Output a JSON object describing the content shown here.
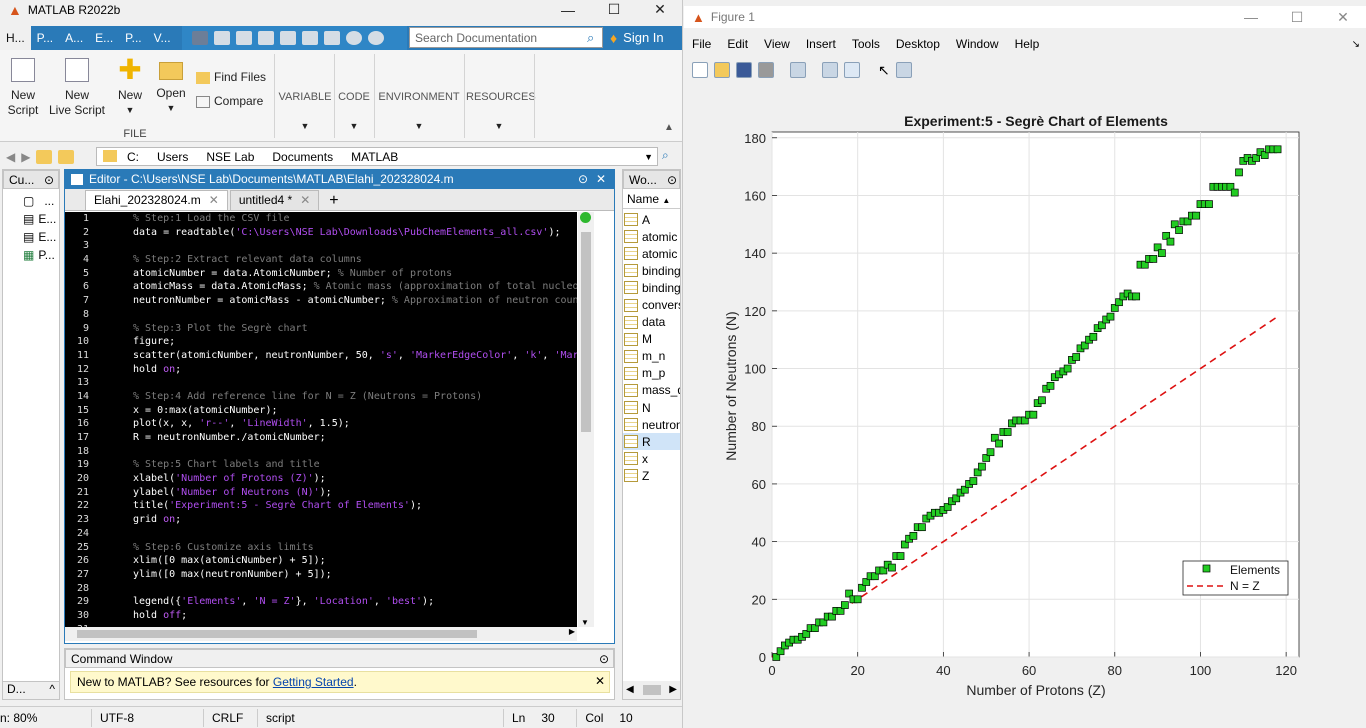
{
  "matlab": {
    "title": "MATLAB R2022b",
    "tabs": [
      "H...",
      "P...",
      "A...",
      "E...",
      "P...",
      "V..."
    ],
    "search_placeholder": "Search Documentation",
    "sign_in": "Sign In",
    "ribbon": {
      "new_script": "New\nScript",
      "new_live_script": "New\nLive Script",
      "new": "New",
      "open": "Open",
      "find_files": "Find Files",
      "compare": "Compare",
      "file_section": "FILE",
      "variable": "VARIABLE",
      "code": "CODE",
      "environment": "ENVIRONMENT",
      "resources": "RESOURCES"
    },
    "path": [
      "C:",
      "Users",
      "NSE Lab",
      "Documents",
      "MATLAB"
    ],
    "current_folder": {
      "title": "Cu...",
      "items": [
        "...",
        "E...",
        "E...",
        "P..."
      ],
      "footer": "D..."
    },
    "editor": {
      "title": "Editor - C:\\Users\\NSE Lab\\Documents\\MATLAB\\Elahi_202328024.m",
      "tabs": [
        "Elahi_202328024.m",
        "untitled4 *"
      ],
      "lines": [
        [
          [
            "c-comment",
            "% Step:1 Load the CSV file"
          ]
        ],
        [
          [
            "",
            "data = readtable("
          ],
          [
            "c-str",
            "'C:\\Users\\NSE Lab\\Downloads\\PubChemElements_all.csv'"
          ],
          [
            "",
            ");"
          ]
        ],
        [],
        [
          [
            "c-comment",
            "% Step:2 Extract relevant data columns"
          ]
        ],
        [
          [
            "",
            "atomicNumber = data.AtomicNumber; "
          ],
          [
            "c-comment",
            "% Number of protons"
          ]
        ],
        [
          [
            "",
            "atomicMass = data.AtomicMass; "
          ],
          [
            "c-comment",
            "% Atomic mass (approximation of total nucleons)"
          ]
        ],
        [
          [
            "",
            "neutronNumber = atomicMass - atomicNumber; "
          ],
          [
            "c-comment",
            "% Approximation of neutron count"
          ]
        ],
        [],
        [
          [
            "c-comment",
            "% Step:3 Plot the Segrè chart"
          ]
        ],
        [
          [
            "",
            "figure;"
          ]
        ],
        [
          [
            "",
            "scatter(atomicNumber, neutronNumber, 50, "
          ],
          [
            "c-str",
            "'s'"
          ],
          [
            "",
            ", "
          ],
          [
            "c-str",
            "'MarkerEdgeColor'"
          ],
          [
            "",
            ", "
          ],
          [
            "c-str",
            "'k'"
          ],
          [
            "",
            ", "
          ],
          [
            "c-str",
            "'Marke"
          ]
        ],
        [
          [
            "",
            "hold "
          ],
          [
            "c-kw",
            "on"
          ],
          [
            "",
            ";"
          ]
        ],
        [],
        [
          [
            "c-comment",
            "% Step:4 Add reference line for N = Z (Neutrons = Protons)"
          ]
        ],
        [
          [
            "",
            "x = 0:max(atomicNumber);"
          ]
        ],
        [
          [
            "",
            "plot(x, x, "
          ],
          [
            "c-str",
            "'r--'"
          ],
          [
            "",
            ", "
          ],
          [
            "c-str",
            "'LineWidth'"
          ],
          [
            "",
            ", 1.5);"
          ]
        ],
        [
          [
            "",
            "R = neutronNumber./atomicNumber;"
          ]
        ],
        [],
        [
          [
            "c-comment",
            "% Step:5 Chart labels and title"
          ]
        ],
        [
          [
            "",
            "xlabel("
          ],
          [
            "c-str",
            "'Number of Protons (Z)'"
          ],
          [
            "",
            ");"
          ]
        ],
        [
          [
            "",
            "ylabel("
          ],
          [
            "c-str",
            "'Number of Neutrons (N)'"
          ],
          [
            "",
            ");"
          ]
        ],
        [
          [
            "",
            "title("
          ],
          [
            "c-str",
            "'Experiment:5 - Segrè Chart of Elements'"
          ],
          [
            "",
            ");"
          ]
        ],
        [
          [
            "",
            "grid "
          ],
          [
            "c-kw",
            "on"
          ],
          [
            "",
            ";"
          ]
        ],
        [],
        [
          [
            "c-comment",
            "% Step:6 Customize axis limits"
          ]
        ],
        [
          [
            "",
            "xlim([0 max(atomicNumber) + 5]);"
          ]
        ],
        [
          [
            "",
            "ylim([0 max(neutronNumber) + 5]);"
          ]
        ],
        [],
        [
          [
            "",
            "legend({"
          ],
          [
            "c-str",
            "'Elements'"
          ],
          [
            "",
            ", "
          ],
          [
            "c-str",
            "'N = Z'"
          ],
          [
            "",
            "}, "
          ],
          [
            "c-str",
            "'Location'"
          ],
          [
            "",
            ", "
          ],
          [
            "c-str",
            "'best'"
          ],
          [
            "",
            ");"
          ]
        ],
        [
          [
            "",
            "hold "
          ],
          [
            "c-kw",
            "off"
          ],
          [
            "",
            ";"
          ]
        ],
        []
      ]
    },
    "command_window": {
      "title": "Command Window",
      "note_prefix": "New to MATLAB? See resources for ",
      "note_link": "Getting Started",
      "note_suffix": "."
    },
    "workspace": {
      "title": "Wo...",
      "column": "Name",
      "vars": [
        "A",
        "atomic",
        "atomic",
        "binding",
        "binding",
        "convers",
        "data",
        "M",
        "m_n",
        "m_p",
        "mass_d",
        "N",
        "neutron",
        "R",
        "x",
        "Z"
      ]
    },
    "status": {
      "zoom": "n: 80%",
      "encoding": "UTF-8",
      "eol": "CRLF",
      "type": "script",
      "ln_label": "Ln",
      "ln": "30",
      "col_label": "Col",
      "col": "10"
    }
  },
  "figure": {
    "title": "Figure 1",
    "menu": [
      "File",
      "Edit",
      "View",
      "Insert",
      "Tools",
      "Desktop",
      "Window",
      "Help"
    ]
  },
  "chart_data": {
    "type": "scatter",
    "title": "Experiment:5 - Segrè Chart of Elements",
    "xlabel": "Number of Protons (Z)",
    "ylabel": "Number of Neutrons (N)",
    "xlim": [
      0,
      123
    ],
    "ylim": [
      0,
      182
    ],
    "xticks": [
      0,
      20,
      40,
      60,
      80,
      100,
      120
    ],
    "yticks": [
      0,
      20,
      40,
      60,
      80,
      100,
      120,
      140,
      160,
      180
    ],
    "grid": true,
    "legend_location": "bottom-right",
    "series": [
      {
        "name": "Elements",
        "kind": "scatter",
        "marker": "square",
        "color": "#22cc22",
        "edge_color": "#000000",
        "x": [
          1,
          2,
          3,
          4,
          5,
          6,
          7,
          8,
          9,
          10,
          11,
          12,
          13,
          14,
          15,
          16,
          17,
          18,
          19,
          20,
          21,
          22,
          23,
          24,
          25,
          26,
          27,
          28,
          29,
          30,
          31,
          32,
          33,
          34,
          35,
          36,
          37,
          38,
          39,
          40,
          41,
          42,
          43,
          44,
          45,
          46,
          47,
          48,
          49,
          50,
          51,
          52,
          53,
          54,
          55,
          56,
          57,
          58,
          59,
          60,
          61,
          62,
          63,
          64,
          65,
          66,
          67,
          68,
          69,
          70,
          71,
          72,
          73,
          74,
          75,
          76,
          77,
          78,
          79,
          80,
          81,
          82,
          83,
          84,
          85,
          86,
          87,
          88,
          89,
          90,
          91,
          92,
          93,
          94,
          95,
          96,
          97,
          98,
          99,
          100,
          101,
          102,
          103,
          104,
          105,
          106,
          107,
          108,
          109,
          110,
          111,
          112,
          113,
          114,
          115,
          116,
          117,
          118
        ],
        "y": [
          0,
          2,
          4,
          5,
          6,
          6,
          7,
          8,
          10,
          10,
          12,
          12,
          14,
          14,
          16,
          16,
          18,
          22,
          20,
          20,
          24,
          26,
          28,
          28,
          30,
          30,
          32,
          31,
          35,
          35,
          39,
          41,
          42,
          45,
          45,
          48,
          49,
          50,
          50,
          51,
          52,
          54,
          55,
          57,
          58,
          60,
          61,
          64,
          66,
          69,
          71,
          76,
          74,
          78,
          78,
          81,
          82,
          82,
          82,
          84,
          84,
          88,
          89,
          93,
          94,
          97,
          98,
          99,
          100,
          103,
          104,
          107,
          108,
          110,
          111,
          114,
          115,
          117,
          118,
          121,
          123,
          125,
          126,
          125,
          125,
          136,
          136,
          138,
          138,
          142,
          140,
          146,
          144,
          150,
          148,
          151,
          151,
          153,
          153,
          157,
          157,
          157,
          163,
          163,
          163,
          163,
          163,
          161,
          168,
          172,
          173,
          172,
          173,
          175,
          174,
          176,
          176,
          176
        ]
      },
      {
        "name": "N = Z",
        "kind": "line",
        "style": "dashed",
        "color": "#dd1111",
        "x": [
          0,
          118
        ],
        "y": [
          0,
          118
        ]
      }
    ]
  }
}
